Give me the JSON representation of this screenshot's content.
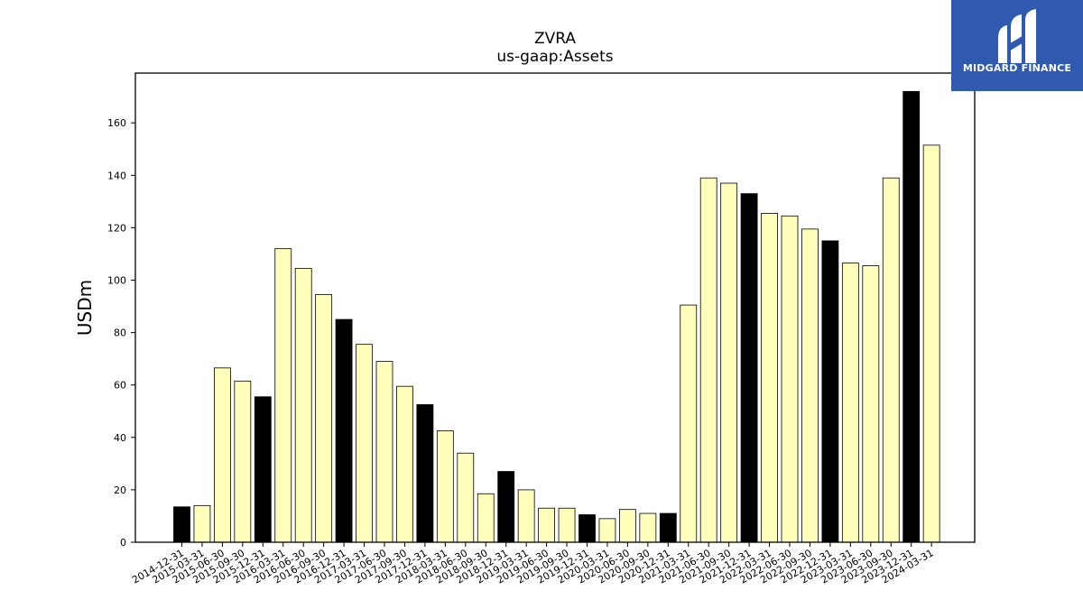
{
  "chart_data": {
    "type": "bar",
    "title": "ZVRA",
    "subtitle": "us-gaap:Assets",
    "xlabel": "",
    "ylabel": "USDm",
    "ylim": [
      0,
      179
    ],
    "yticks": [
      0,
      20,
      40,
      60,
      80,
      100,
      120,
      140,
      160
    ],
    "categories": [
      "2014-12-31",
      "2015-03-31",
      "2015-06-30",
      "2015-09-30",
      "2015-12-31",
      "2016-03-31",
      "2016-06-30",
      "2016-09-30",
      "2016-12-31",
      "2017-03-31",
      "2017-06-30",
      "2017-09-30",
      "2017-12-31",
      "2018-03-31",
      "2018-06-30",
      "2018-09-30",
      "2018-12-31",
      "2019-03-31",
      "2019-06-30",
      "2019-09-30",
      "2019-12-31",
      "2020-03-31",
      "2020-06-30",
      "2020-09-30",
      "2020-12-31",
      "2021-03-31",
      "2021-06-30",
      "2021-09-30",
      "2021-12-31",
      "2022-03-31",
      "2022-06-30",
      "2022-09-30",
      "2022-12-31",
      "2023-03-31",
      "2023-06-30",
      "2023-09-30",
      "2023-12-31",
      "2024-03-31"
    ],
    "values": [
      13.5,
      14,
      66.5,
      61.5,
      55.5,
      112,
      104.5,
      94.5,
      85,
      75.5,
      69,
      59.5,
      52.5,
      42.5,
      34,
      18.5,
      27,
      20,
      13,
      13,
      10.5,
      9,
      12.5,
      11,
      11,
      90.5,
      139,
      137,
      133,
      125.5,
      124.5,
      119.5,
      115,
      106.5,
      105.5,
      139,
      172,
      151.5
    ],
    "colors": {
      "year_end": "#000000",
      "quarter": "#ffffbb",
      "edge": "#000000"
    },
    "grid": false,
    "legend": "none"
  },
  "logo": {
    "text": "MIDGARD FINANCE",
    "background": "#2f5ab0"
  }
}
